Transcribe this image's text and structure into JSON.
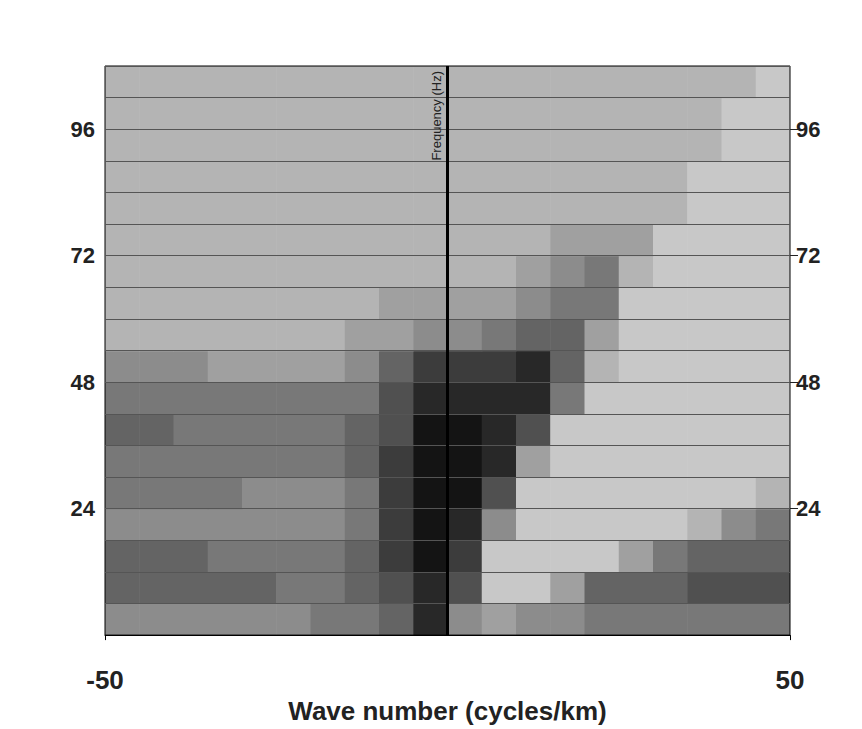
{
  "chart_data": {
    "type": "heatmap",
    "x_label": "Wave number (cycles/km)",
    "y_label": "Frequency (Hz)",
    "xlim": [
      -50,
      50
    ],
    "xticks": [
      -50,
      50
    ],
    "ylim": [
      0,
      108
    ],
    "yticks": [
      24,
      48,
      72,
      96
    ],
    "grid": true,
    "value_range": [
      0,
      10
    ],
    "cells": {
      "x_edges": [
        -50,
        -45,
        -40,
        -35,
        -30,
        -25,
        -20,
        -15,
        -10,
        -5,
        0,
        5,
        10,
        15,
        20,
        25,
        30,
        35,
        40,
        45,
        50
      ],
      "y_edges": [
        0,
        6,
        12,
        18,
        24,
        30,
        36,
        42,
        48,
        54,
        60,
        66,
        72,
        78,
        84,
        90,
        96,
        102,
        108
      ],
      "values": [
        [
          4,
          4,
          4,
          4,
          4,
          4,
          5,
          5,
          6,
          9,
          4,
          3,
          4,
          4,
          5,
          5,
          5,
          5,
          5,
          5
        ],
        [
          6,
          6,
          6,
          6,
          6,
          5,
          5,
          6,
          7,
          9,
          7,
          1,
          1,
          3,
          6,
          6,
          6,
          7,
          7,
          7
        ],
        [
          6,
          6,
          6,
          5,
          5,
          5,
          5,
          6,
          8,
          10,
          8,
          1,
          1,
          1,
          1,
          3,
          5,
          6,
          6,
          6
        ],
        [
          4,
          4,
          4,
          4,
          4,
          4,
          4,
          5,
          8,
          10,
          9,
          4,
          1,
          1,
          1,
          1,
          1,
          2,
          4,
          5
        ],
        [
          5,
          5,
          5,
          5,
          4,
          4,
          4,
          5,
          8,
          10,
          10,
          7,
          1,
          1,
          1,
          1,
          1,
          1,
          1,
          2
        ],
        [
          5,
          5,
          5,
          5,
          5,
          5,
          5,
          6,
          8,
          10,
          10,
          9,
          3,
          1,
          1,
          1,
          1,
          1,
          1,
          1
        ],
        [
          6,
          6,
          5,
          5,
          5,
          5,
          5,
          6,
          7,
          10,
          10,
          9,
          7,
          1,
          1,
          1,
          1,
          1,
          1,
          1
        ],
        [
          5,
          5,
          5,
          5,
          5,
          5,
          5,
          5,
          7,
          9,
          9,
          9,
          9,
          5,
          1,
          1,
          1,
          1,
          1,
          1
        ],
        [
          4,
          4,
          4,
          3,
          3,
          3,
          3,
          4,
          6,
          8,
          8,
          8,
          9,
          6,
          2,
          1,
          1,
          1,
          1,
          1
        ],
        [
          2,
          2,
          2,
          2,
          2,
          2,
          2,
          3,
          3,
          4,
          4,
          5,
          6,
          6,
          3,
          1,
          1,
          1,
          1,
          1
        ],
        [
          2,
          2,
          2,
          2,
          2,
          2,
          2,
          2,
          3,
          3,
          3,
          3,
          4,
          5,
          5,
          1,
          1,
          1,
          1,
          1
        ],
        [
          2,
          2,
          2,
          2,
          2,
          2,
          2,
          2,
          2,
          2,
          2,
          2,
          3,
          4,
          5,
          2,
          1,
          1,
          1,
          1
        ],
        [
          2,
          2,
          2,
          2,
          2,
          2,
          2,
          2,
          2,
          2,
          2,
          2,
          2,
          3,
          3,
          3,
          1,
          1,
          1,
          1
        ],
        [
          2,
          2,
          2,
          2,
          2,
          2,
          2,
          2,
          2,
          2,
          2,
          2,
          2,
          2,
          2,
          2,
          2,
          1,
          1,
          1
        ],
        [
          2,
          2,
          2,
          2,
          2,
          2,
          2,
          2,
          2,
          2,
          2,
          2,
          2,
          2,
          2,
          2,
          2,
          1,
          1,
          1
        ],
        [
          2,
          2,
          2,
          2,
          2,
          2,
          2,
          2,
          2,
          2,
          2,
          2,
          2,
          2,
          2,
          2,
          2,
          2,
          1,
          1
        ],
        [
          2,
          2,
          2,
          2,
          2,
          2,
          2,
          2,
          2,
          2,
          2,
          2,
          2,
          2,
          2,
          2,
          2,
          2,
          1,
          1
        ],
        [
          2,
          2,
          2,
          2,
          2,
          2,
          2,
          2,
          2,
          2,
          2,
          2,
          2,
          2,
          2,
          2,
          2,
          2,
          2,
          1
        ]
      ]
    }
  }
}
